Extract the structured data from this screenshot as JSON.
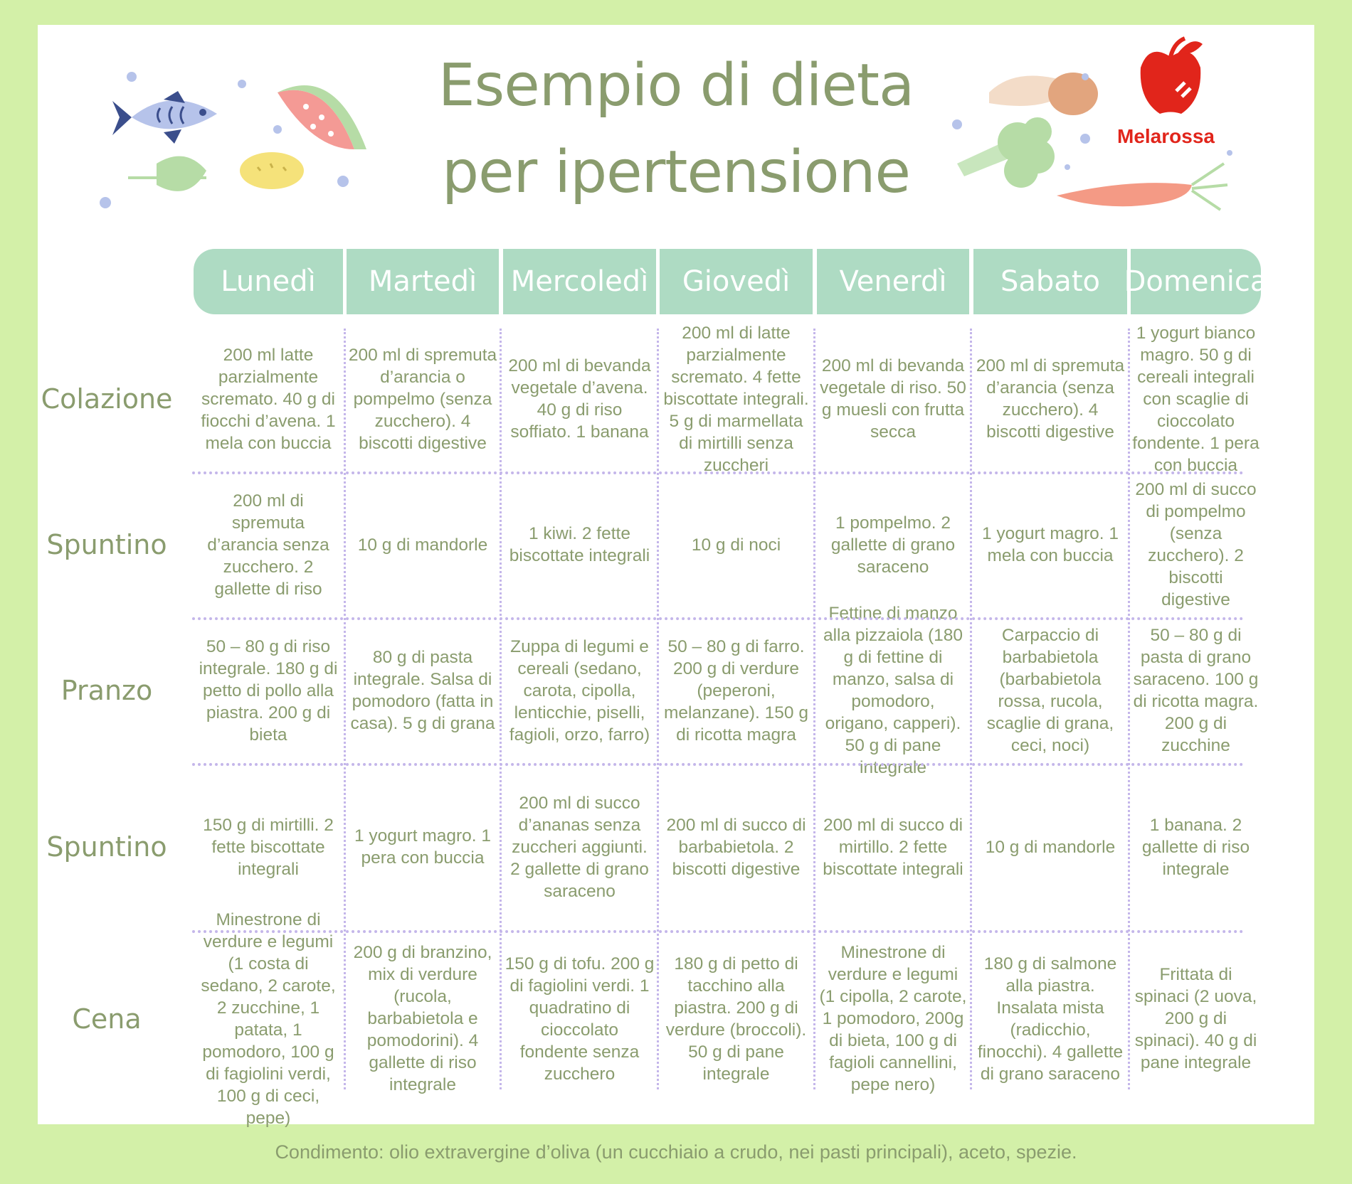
{
  "title_line1": "Esempio di dieta",
  "title_line2": "per ipertensione",
  "brand": "Melarossa",
  "colors": {
    "background": "#d3f0a8",
    "header": "#aedbc3",
    "text": "#8a9c6e",
    "divider": "#c4b6ea",
    "brand": "#e1251b"
  },
  "icons": [
    "fish-icon",
    "watermelon-icon",
    "lemon-icon",
    "leaf-icon",
    "mushroom-icon",
    "broccoli-icon",
    "carrot-icon",
    "apple-logo-icon"
  ],
  "days": [
    "Lunedì",
    "Martedì",
    "Mercoledì",
    "Giovedì",
    "Venerdì",
    "Sabato",
    "Domenica"
  ],
  "meals": [
    {
      "label": "Colazione",
      "cells": [
        "200 ml latte parzialmente scremato. 40 g di fiocchi d’avena. 1 mela con buccia",
        "200 ml di spremuta d’arancia o pompelmo (senza zucchero). 4 biscotti digestive",
        "200 ml di bevanda vegetale d’avena. 40 g di riso soffiato. 1 banana",
        "200 ml di latte parzialmente scremato. 4 fette biscottate integrali. 5 g di marmellata di mirtilli senza zuccheri",
        "200 ml di bevanda vegetale di riso. 50 g muesli con frutta secca",
        "200 ml di spremuta d’arancia (senza zucchero). 4 biscotti digestive",
        "1 yogurt bianco magro. 50 g di cereali integrali con scaglie di cioccolato fondente. 1 pera con buccia"
      ]
    },
    {
      "label": "Spuntino",
      "cells": [
        "200 ml di spremuta d’arancia senza zucchero. 2 gallette di riso",
        "10 g di mandorle",
        "1 kiwi. 2 fette biscottate integrali",
        "10 g di noci",
        "1 pompelmo. 2 gallette di grano saraceno",
        "1 yogurt magro. 1 mela con buccia",
        "200 ml di succo di pompelmo (senza zucchero). 2 biscotti digestive"
      ]
    },
    {
      "label": "Pranzo",
      "cells": [
        "50 – 80 g di riso integrale. 180 g di petto di pollo alla piastra. 200 g di bieta",
        "80 g di pasta integrale. Salsa di pomodoro (fatta in casa). 5 g di grana",
        "Zuppa di legumi e cereali (sedano, carota, cipolla, lenticchie, piselli, fagioli, orzo, farro)",
        "50 – 80 g di farro. 200 g di verdure (peperoni, melanzane). 150 g di ricotta magra",
        "Fettine di manzo alla pizzaiola (180 g di fettine di manzo, salsa di pomodoro, origano, capperi). 50 g di pane integrale",
        "Carpaccio di barbabietola (barbabietola rossa, rucola, scaglie di grana, ceci, noci)",
        "50 – 80 g di pasta di grano saraceno. 100 g di ricotta magra. 200 g di zucchine"
      ]
    },
    {
      "label": "Spuntino",
      "cells": [
        "150 g di mirtilli. 2 fette biscottate integrali",
        "1 yogurt magro. 1 pera con buccia",
        "200 ml di succo d’ananas senza zuccheri aggiunti. 2 gallette di grano saraceno",
        "200 ml di succo di barbabietola. 2 biscotti digestive",
        "200 ml di succo di mirtillo. 2 fette biscottate integrali",
        "10 g di mandorle",
        "1 banana. 2 gallette di riso integrale"
      ]
    },
    {
      "label": "Cena",
      "cells": [
        "Minestrone di verdure e legumi (1 costa di sedano, 2 carote, 2 zucchine, 1 patata, 1 pomodoro, 100 g di fagiolini verdi, 100 g di ceci, pepe)",
        "200 g di branzino, mix di verdure (rucola, barbabietola e pomodorini). 4 gallette di riso integrale",
        "150 g di tofu. 200 g di fagiolini verdi. 1 quadratino di cioccolato fondente senza zucchero",
        "180 g di petto di tacchino alla piastra. 200 g di verdure (broccoli). 50 g di pane integrale",
        "Minestrone di verdure e legumi (1 cipolla, 2 carote, 1 pomodoro, 200g di bieta, 100 g di fagioli cannellini, pepe nero)",
        "180 g di salmone alla piastra. Insalata mista (radicchio, finocchi). 4 gallette di grano saraceno",
        "Frittata di spinaci (2 uova, 200 g di spinaci). 40 g di pane integrale"
      ]
    }
  ],
  "footer": "Condimento: olio extravergine d’oliva (un cucchiaio a crudo, nei pasti principali), aceto, spezie."
}
